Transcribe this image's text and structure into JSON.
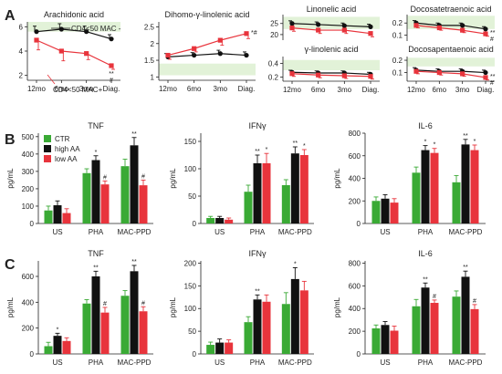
{
  "figure": {
    "panel_labels": [
      "A",
      "B",
      "C"
    ],
    "legend": [
      {
        "name": "CTR",
        "color": "#3aaa35"
      },
      {
        "name": "high AA",
        "color": "#111111"
      },
      {
        "name": "low AA",
        "color": "#e8343c"
      }
    ],
    "group_annotations": [
      {
        "text": "CD4<50 MAC -",
        "color": "#111111"
      },
      {
        "text": "CD4<50 MAC+",
        "color": "#e8343c"
      }
    ],
    "series_colors": {
      "mac_neg": "#111111",
      "mac_pos": "#e8343c",
      "band": "#e2f2d8"
    }
  },
  "chart_data": [
    {
      "id": "A1",
      "type": "line",
      "title": "Arachidonic acid",
      "x": [
        "12mo",
        "6mo",
        "3mo",
        "Diag."
      ],
      "ylim": [
        1.6,
        6.4
      ],
      "yticks": [
        2,
        4,
        6
      ],
      "normal_range": [
        5.6,
        6.4
      ],
      "series": [
        {
          "name": "CD4<50 MAC -",
          "color": "#111111",
          "marker": "circle",
          "values": [
            5.6,
            5.8,
            5.6,
            5.0
          ],
          "err": [
            0.45,
            0.45,
            0.45,
            0.35
          ]
        },
        {
          "name": "CD4<50 MAC+",
          "color": "#e8343c",
          "marker": "square",
          "values": [
            4.9,
            4.0,
            3.8,
            2.8
          ],
          "err": [
            0.8,
            0.8,
            0.5,
            0.3
          ]
        }
      ],
      "sig": [
        {
          "i": 3,
          "text": "**",
          "pos": "below"
        },
        {
          "i": 3,
          "text": "#",
          "pos": "below2"
        }
      ]
    },
    {
      "id": "A2",
      "type": "line",
      "title": "Dihomo-γ-linolenic acid",
      "x": [
        "12mo",
        "6mo",
        "3mo",
        "Diag."
      ],
      "ylim": [
        0.9,
        2.65
      ],
      "yticks": [
        1.0,
        1.5,
        2.0,
        2.5
      ],
      "normal_range": [
        1.05,
        1.4
      ],
      "series": [
        {
          "name": "CD4<50 MAC -",
          "color": "#111111",
          "marker": "circle",
          "values": [
            1.6,
            1.65,
            1.7,
            1.65
          ],
          "err": [
            0.1,
            0.08,
            0.1,
            0.1
          ]
        },
        {
          "name": "CD4<50 MAC+",
          "color": "#e8343c",
          "marker": "square",
          "values": [
            1.65,
            1.85,
            2.1,
            2.3
          ],
          "err": [
            0.12,
            0.1,
            0.15,
            0.15
          ]
        }
      ],
      "sig": [
        {
          "i": 3,
          "text": "*#",
          "pos": "right"
        }
      ]
    },
    {
      "id": "A3",
      "type": "line",
      "title": "Linonelic acid",
      "x": [
        "12mo",
        "6mo",
        "3mo",
        "Diag."
      ],
      "ylim": [
        17.5,
        29
      ],
      "yticks": [
        20,
        25
      ],
      "normal_range": [
        22.5,
        28
      ],
      "series": [
        {
          "name": "CD4<50 MAC -",
          "color": "#111111",
          "marker": "circle",
          "values": [
            25,
            24.5,
            24,
            23.5
          ],
          "err": [
            1.2,
            1.2,
            1.2,
            1.2
          ]
        },
        {
          "name": "CD4<50 MAC+",
          "color": "#e8343c",
          "marker": "square",
          "values": [
            23,
            22,
            22,
            20.5
          ],
          "err": [
            1.5,
            1.5,
            1.5,
            1.5
          ]
        }
      ],
      "sig": []
    },
    {
      "id": "A4",
      "type": "line",
      "title": "γ-linolenic acid",
      "x": [
        "12mo",
        "6mo",
        "3mo",
        "Diag."
      ],
      "ylim": [
        0.14,
        0.5
      ],
      "yticks": [
        0.2,
        0.4
      ],
      "normal_range": [
        0.3,
        0.45
      ],
      "series": [
        {
          "name": "CD4<50 MAC -",
          "color": "#111111",
          "marker": "circle",
          "values": [
            0.27,
            0.26,
            0.26,
            0.24
          ],
          "err": [
            0.03,
            0.03,
            0.03,
            0.03
          ]
        },
        {
          "name": "CD4<50 MAC+",
          "color": "#e8343c",
          "marker": "square",
          "values": [
            0.25,
            0.23,
            0.22,
            0.21
          ],
          "err": [
            0.04,
            0.04,
            0.04,
            0.04
          ]
        }
      ],
      "sig": []
    },
    {
      "id": "A5",
      "type": "line",
      "title": "Docosatetraenoic acid",
      "x": [
        "12mo",
        "6mo",
        "3mo",
        "Diag."
      ],
      "ylim": [
        0.05,
        0.27
      ],
      "yticks": [
        0.1,
        0.2
      ],
      "normal_range": [
        0.15,
        0.26
      ],
      "series": [
        {
          "name": "CD4<50 MAC -",
          "color": "#111111",
          "marker": "circle",
          "values": [
            0.2,
            0.18,
            0.18,
            0.15
          ],
          "err": [
            0.02,
            0.02,
            0.02,
            0.02
          ]
        },
        {
          "name": "CD4<50 MAC+",
          "color": "#e8343c",
          "marker": "square",
          "values": [
            0.18,
            0.16,
            0.14,
            0.11
          ],
          "err": [
            0.02,
            0.02,
            0.02,
            0.02
          ]
        }
      ],
      "sig": [
        {
          "i": 3,
          "text": "**",
          "pos": "right"
        },
        {
          "i": 3,
          "text": "#",
          "pos": "right2"
        }
      ]
    },
    {
      "id": "A6",
      "type": "line",
      "title": "Docosapentaenoic acid",
      "x": [
        "12mo",
        "6mo",
        "3mo",
        "Diag."
      ],
      "ylim": [
        0.03,
        0.23
      ],
      "yticks": [
        0.1,
        0.2
      ],
      "normal_range": [
        0.15,
        0.22
      ],
      "series": [
        {
          "name": "CD4<50 MAC -",
          "color": "#111111",
          "marker": "circle",
          "values": [
            0.12,
            0.11,
            0.11,
            0.1
          ],
          "err": [
            0.02,
            0.02,
            0.02,
            0.02
          ]
        },
        {
          "name": "CD4<50 MAC+",
          "color": "#e8343c",
          "marker": "square",
          "values": [
            0.11,
            0.1,
            0.09,
            0.06
          ],
          "err": [
            0.02,
            0.02,
            0.02,
            0.02
          ]
        }
      ],
      "sig": [
        {
          "i": 3,
          "text": "**",
          "pos": "right"
        },
        {
          "i": 3,
          "text": "#",
          "pos": "right2"
        }
      ]
    },
    {
      "id": "B1",
      "type": "bar",
      "title": "TNF",
      "ylabel": "pg/mL",
      "categories": [
        "US",
        "PHA",
        "MAC-PPD"
      ],
      "ylim": [
        0,
        520
      ],
      "yticks": [
        0,
        100,
        200,
        300,
        400,
        500
      ],
      "series": [
        {
          "name": "CTR",
          "color": "#3aaa35",
          "values": [
            75,
            290,
            330
          ],
          "err": [
            25,
            25,
            40
          ]
        },
        {
          "name": "high AA",
          "color": "#111111",
          "values": [
            105,
            365,
            450
          ],
          "err": [
            25,
            25,
            45
          ]
        },
        {
          "name": "low AA",
          "color": "#e8343c",
          "values": [
            60,
            225,
            220
          ],
          "err": [
            25,
            20,
            30
          ]
        }
      ],
      "sig": [
        {
          "c": 1,
          "s": 1,
          "text": "*"
        },
        {
          "c": 1,
          "s": 2,
          "text": "#"
        },
        {
          "c": 2,
          "s": 1,
          "text": "**"
        },
        {
          "c": 2,
          "s": 2,
          "text": "#"
        }
      ]
    },
    {
      "id": "B2",
      "type": "bar",
      "title": "IFNγ",
      "ylabel": "pg/mL",
      "categories": [
        "US",
        "PHA",
        "MAC-PPD"
      ],
      "ylim": [
        0,
        165
      ],
      "yticks": [
        0,
        50,
        100,
        150
      ],
      "series": [
        {
          "name": "CTR",
          "color": "#3aaa35",
          "values": [
            10,
            58,
            70
          ],
          "err": [
            3,
            12,
            10
          ]
        },
        {
          "name": "high AA",
          "color": "#111111",
          "values": [
            10,
            110,
            128
          ],
          "err": [
            3,
            15,
            12
          ]
        },
        {
          "name": "low AA",
          "color": "#e8343c",
          "values": [
            7,
            110,
            125
          ],
          "err": [
            3,
            18,
            10
          ]
        }
      ],
      "sig": [
        {
          "c": 1,
          "s": 1,
          "text": "**"
        },
        {
          "c": 1,
          "s": 2,
          "text": "*"
        },
        {
          "c": 2,
          "s": 1,
          "text": "**"
        },
        {
          "c": 2,
          "s": 2,
          "text": "*"
        }
      ]
    },
    {
      "id": "B3",
      "type": "bar",
      "title": "IL-6",
      "ylabel": "pg/mL",
      "categories": [
        "US",
        "PHA",
        "MAC-PPD"
      ],
      "ylim": [
        0,
        800
      ],
      "yticks": [
        0,
        200,
        400,
        600,
        800
      ],
      "series": [
        {
          "name": "CTR",
          "color": "#3aaa35",
          "values": [
            200,
            450,
            365
          ],
          "err": [
            35,
            50,
            60
          ]
        },
        {
          "name": "high AA",
          "color": "#111111",
          "values": [
            220,
            650,
            700
          ],
          "err": [
            35,
            40,
            45
          ]
        },
        {
          "name": "low AA",
          "color": "#e8343c",
          "values": [
            185,
            625,
            650
          ],
          "err": [
            35,
            40,
            45
          ]
        }
      ],
      "sig": [
        {
          "c": 1,
          "s": 1,
          "text": "*"
        },
        {
          "c": 1,
          "s": 2,
          "text": "*"
        },
        {
          "c": 2,
          "s": 1,
          "text": "**"
        },
        {
          "c": 2,
          "s": 2,
          "text": "*"
        }
      ]
    },
    {
      "id": "C1",
      "type": "bar",
      "title": "TNF",
      "ylabel": "pg/mL",
      "categories": [
        "US",
        "PHA",
        "MAC-PPD"
      ],
      "ylim": [
        0,
        720
      ],
      "yticks": [
        0,
        200,
        400,
        600
      ],
      "series": [
        {
          "name": "CTR",
          "color": "#3aaa35",
          "values": [
            60,
            390,
            450
          ],
          "err": [
            30,
            30,
            40
          ]
        },
        {
          "name": "high AA",
          "color": "#111111",
          "values": [
            140,
            600,
            640
          ],
          "err": [
            20,
            40,
            45
          ]
        },
        {
          "name": "low AA",
          "color": "#e8343c",
          "values": [
            100,
            320,
            330
          ],
          "err": [
            25,
            40,
            35
          ]
        }
      ],
      "sig": [
        {
          "c": 0,
          "s": 1,
          "text": "*"
        },
        {
          "c": 1,
          "s": 1,
          "text": "**"
        },
        {
          "c": 1,
          "s": 2,
          "text": "#"
        },
        {
          "c": 2,
          "s": 1,
          "text": "**"
        },
        {
          "c": 2,
          "s": 2,
          "text": "#"
        }
      ]
    },
    {
      "id": "C2",
      "type": "bar",
      "title": "IFNγ",
      "ylabel": "pg/mL",
      "categories": [
        "US",
        "PHA",
        "MAC-PPD"
      ],
      "ylim": [
        0,
        205
      ],
      "yticks": [
        0,
        50,
        100,
        150,
        200
      ],
      "series": [
        {
          "name": "CTR",
          "color": "#3aaa35",
          "values": [
            20,
            70,
            110
          ],
          "err": [
            6,
            12,
            25
          ]
        },
        {
          "name": "high AA",
          "color": "#111111",
          "values": [
            25,
            120,
            165
          ],
          "err": [
            8,
            10,
            25
          ]
        },
        {
          "name": "low AA",
          "color": "#e8343c",
          "values": [
            25,
            115,
            140
          ],
          "err": [
            6,
            15,
            20
          ]
        }
      ],
      "sig": [
        {
          "c": 1,
          "s": 1,
          "text": "**"
        },
        {
          "c": 2,
          "s": 1,
          "text": "*"
        }
      ]
    },
    {
      "id": "C3",
      "type": "bar",
      "title": "IL-6",
      "ylabel": "pg/mL",
      "categories": [
        "US",
        "PHA",
        "MAC-PPD"
      ],
      "ylim": [
        0,
        820
      ],
      "yticks": [
        0,
        200,
        400,
        600,
        800
      ],
      "series": [
        {
          "name": "CTR",
          "color": "#3aaa35",
          "values": [
            225,
            420,
            505
          ],
          "err": [
            30,
            60,
            50
          ]
        },
        {
          "name": "high AA",
          "color": "#111111",
          "values": [
            255,
            585,
            680
          ],
          "err": [
            30,
            40,
            50
          ]
        },
        {
          "name": "low AA",
          "color": "#e8343c",
          "values": [
            205,
            450,
            395
          ],
          "err": [
            40,
            25,
            40
          ]
        }
      ],
      "sig": [
        {
          "c": 1,
          "s": 1,
          "text": "**"
        },
        {
          "c": 1,
          "s": 2,
          "text": "#"
        },
        {
          "c": 2,
          "s": 1,
          "text": "**"
        },
        {
          "c": 2,
          "s": 2,
          "text": "#"
        }
      ]
    }
  ]
}
